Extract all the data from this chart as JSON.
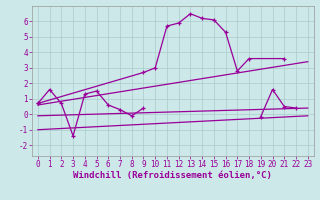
{
  "background_color": "#cce8e8",
  "grid_color": "#aacccc",
  "line_color": "#990099",
  "xlim": [
    -0.5,
    23.5
  ],
  "ylim": [
    -2.7,
    7.0
  ],
  "xticks": [
    0,
    1,
    2,
    3,
    4,
    5,
    6,
    7,
    8,
    9,
    10,
    11,
    12,
    13,
    14,
    15,
    16,
    17,
    18,
    19,
    20,
    21,
    22,
    23
  ],
  "yticks": [
    -2,
    -1,
    0,
    1,
    2,
    3,
    4,
    5,
    6
  ],
  "xlabel": "Windchill (Refroidissement éolien,°C)",
  "tick_fontsize": 5.5,
  "label_fontsize": 6.5,
  "series1_x": [
    0,
    1,
    2,
    3,
    4,
    5,
    6,
    7,
    8,
    9
  ],
  "series1_y": [
    0.7,
    1.6,
    0.7,
    -1.4,
    1.3,
    1.5,
    0.6,
    0.3,
    -0.1,
    0.4
  ],
  "series2_x": [
    0,
    9,
    10,
    11,
    12,
    13,
    14,
    15,
    16,
    17,
    18,
    21
  ],
  "series2_y": [
    0.7,
    2.7,
    3.0,
    5.7,
    5.9,
    6.5,
    6.2,
    6.1,
    5.3,
    2.8,
    3.6,
    3.6
  ],
  "trend1_x": [
    0,
    23
  ],
  "trend1_y": [
    0.6,
    3.4
  ],
  "trend2_x": [
    0,
    23
  ],
  "trend2_y": [
    -0.1,
    0.4
  ],
  "trend3_x": [
    0,
    23
  ],
  "trend3_y": [
    -1.0,
    -0.1
  ],
  "series3_x": [
    19,
    20,
    21,
    22
  ],
  "series3_y": [
    -0.15,
    1.6,
    0.5,
    0.4
  ]
}
